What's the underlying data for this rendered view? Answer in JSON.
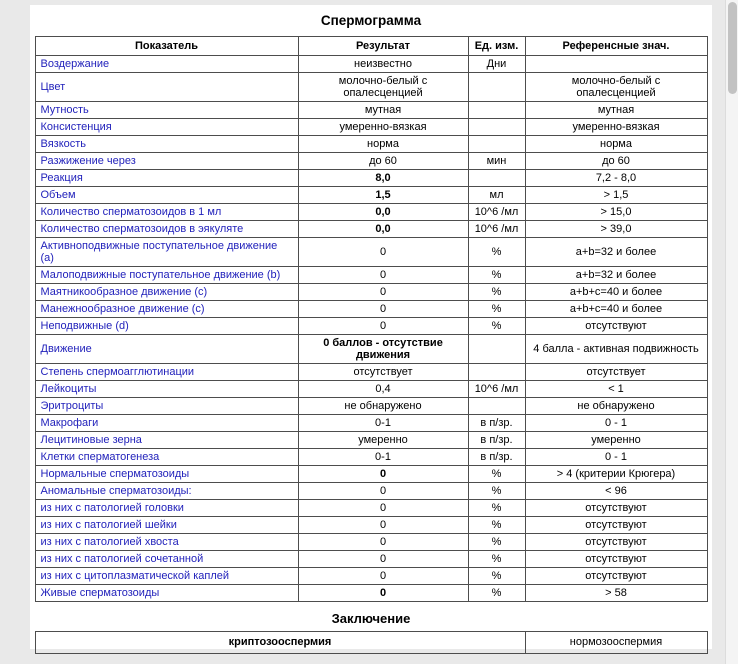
{
  "colors": {
    "param-link": "#2222bb"
  },
  "report": {
    "title": "Спермограмма",
    "conclusion_title": "Заключение"
  },
  "table": {
    "headers": [
      "Показатель",
      "Результат",
      "Ед. изм.",
      "Референсные знач."
    ],
    "rows": [
      {
        "param": "Воздержание",
        "result": "неизвестно",
        "unit": "Дни",
        "ref": "",
        "bold": false
      },
      {
        "param": "Цвет",
        "result": "молочно-белый с опалесценцией",
        "unit": "",
        "ref": "молочно-белый с\nопалесценцией",
        "bold": false
      },
      {
        "param": "Мутность",
        "result": "мутная",
        "unit": "",
        "ref": "мутная",
        "bold": false
      },
      {
        "param": "Консистенция",
        "result": "умеренно-вязкая",
        "unit": "",
        "ref": "умеренно-вязкая",
        "bold": false
      },
      {
        "param": "Вязкость",
        "result": "норма",
        "unit": "",
        "ref": "норма",
        "bold": false
      },
      {
        "param": "Разжижение через",
        "result": "до 60",
        "unit": "мин",
        "ref": "до 60",
        "bold": false
      },
      {
        "param": "Реакция",
        "result": "8,0",
        "unit": "",
        "ref": "7,2 - 8,0",
        "bold": true
      },
      {
        "param": "Объем",
        "result": "1,5",
        "unit": "мл",
        "ref": "> 1,5",
        "bold": true
      },
      {
        "param": "Количество сперматозоидов в 1 мл",
        "result": "0,0",
        "unit": "10^6 /мл",
        "ref": "> 15,0",
        "bold": true
      },
      {
        "param": "Количество сперматозоидов в эякуляте",
        "result": "0,0",
        "unit": "10^6 /мл",
        "ref": "> 39,0",
        "bold": true
      },
      {
        "param": "Активноподвижные поступательное движение (a)",
        "result": "0",
        "unit": "%",
        "ref": "a+b=32 и более",
        "bold": false
      },
      {
        "param": "Малоподвижные поступательное движение (b)",
        "result": "0",
        "unit": "%",
        "ref": "a+b=32 и более",
        "bold": false
      },
      {
        "param": "Маятникообразное движение (c)",
        "result": "0",
        "unit": "%",
        "ref": "a+b+c=40 и более",
        "bold": false
      },
      {
        "param": "Манежнообразное движение (c)",
        "result": "0",
        "unit": "%",
        "ref": "a+b+c=40 и более",
        "bold": false
      },
      {
        "param": "Неподвижные (d)",
        "result": "0",
        "unit": "%",
        "ref": "отсутствуют",
        "bold": false
      },
      {
        "param": "Движение",
        "result": "0 баллов - отсутствие\nдвижения",
        "unit": "",
        "ref": "4 балла - активная подвижность",
        "bold": true
      },
      {
        "param": "Степень спермоагглютинации",
        "result": "отсутствует",
        "unit": "",
        "ref": "отсутствует",
        "bold": false
      },
      {
        "param": "Лейкоциты",
        "result": "0,4",
        "unit": "10^6 /мл",
        "ref": "< 1",
        "bold": false
      },
      {
        "param": "Эритроциты",
        "result": "не обнаружено",
        "unit": "",
        "ref": "не обнаружено",
        "bold": false
      },
      {
        "param": "Макрофаги",
        "result": "0-1",
        "unit": "в п/зр.",
        "ref": "0 - 1",
        "bold": false
      },
      {
        "param": "Лецитиновые зерна",
        "result": "умеренно",
        "unit": "в п/зр.",
        "ref": "умеренно",
        "bold": false
      },
      {
        "param": "Клетки сперматогенеза",
        "result": "0-1",
        "unit": "в п/зр.",
        "ref": "0 - 1",
        "bold": false
      },
      {
        "param": "Нормальные сперматозоиды",
        "result": "0",
        "unit": "%",
        "ref": "> 4 (критерии Крюгера)",
        "bold": true
      },
      {
        "param": "Аномальные сперматозоиды:",
        "result": "0",
        "unit": "%",
        "ref": "< 96",
        "bold": false
      },
      {
        "param": "из них с патологией головки",
        "result": "0",
        "unit": "%",
        "ref": "отсутствуют",
        "bold": false
      },
      {
        "param": "из них с патологией шейки",
        "result": "0",
        "unit": "%",
        "ref": "отсутствуют",
        "bold": false
      },
      {
        "param": "из них с патологией хвоста",
        "result": "0",
        "unit": "%",
        "ref": "отсутствуют",
        "bold": false
      },
      {
        "param": "из них с патологией сочетанной",
        "result": "0",
        "unit": "%",
        "ref": "отсутствуют",
        "bold": false
      },
      {
        "param": "из них с цитоплазматической каплей",
        "result": "0",
        "unit": "%",
        "ref": "отсутствуют",
        "bold": false
      },
      {
        "param": "Живые сперматозоиды",
        "result": "0",
        "unit": "%",
        "ref": "> 58",
        "bold": true
      }
    ]
  },
  "conclusion": {
    "result": "криптозооспермия",
    "reference": "нормозооспермия"
  }
}
